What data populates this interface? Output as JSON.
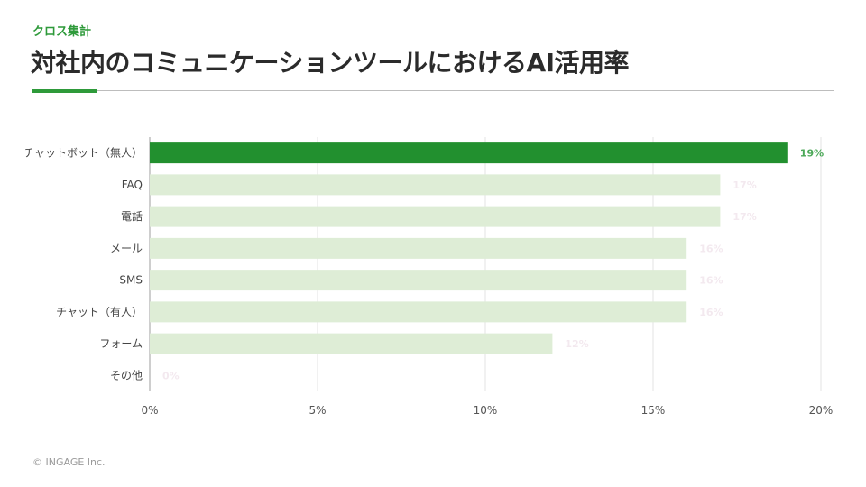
{
  "header": {
    "tag": "クロス集計",
    "title": "対社内のコミュニケーションツールにおけるAI活用率"
  },
  "footer": {
    "copyright": "© INGAGE Inc."
  },
  "colors": {
    "accent": "#2e9a3a",
    "bar_highlight": "#22902f",
    "bar_default": "#deedd6",
    "label_highlight": "#4aa857",
    "label_faint": "#f3e9ef",
    "grid": "#e3e3e3",
    "axis": "#9e9e9e"
  },
  "chart_data": {
    "type": "bar",
    "orientation": "horizontal",
    "categories": [
      "チャットボット（無人）",
      "FAQ",
      "電話",
      "メール",
      "SMS",
      "チャット（有人）",
      "フォーム",
      "その他"
    ],
    "values": [
      19,
      17,
      17,
      16,
      16,
      16,
      12,
      0
    ],
    "data_labels": [
      "19%",
      "17%",
      "17%",
      "16%",
      "16%",
      "16%",
      "12%",
      "0%"
    ],
    "highlight_index": 0,
    "xlim": [
      0,
      20
    ],
    "xticks": [
      0,
      5,
      10,
      15,
      20
    ],
    "xtick_labels": [
      "0%",
      "5%",
      "10%",
      "15%",
      "20%"
    ],
    "grid": true
  }
}
